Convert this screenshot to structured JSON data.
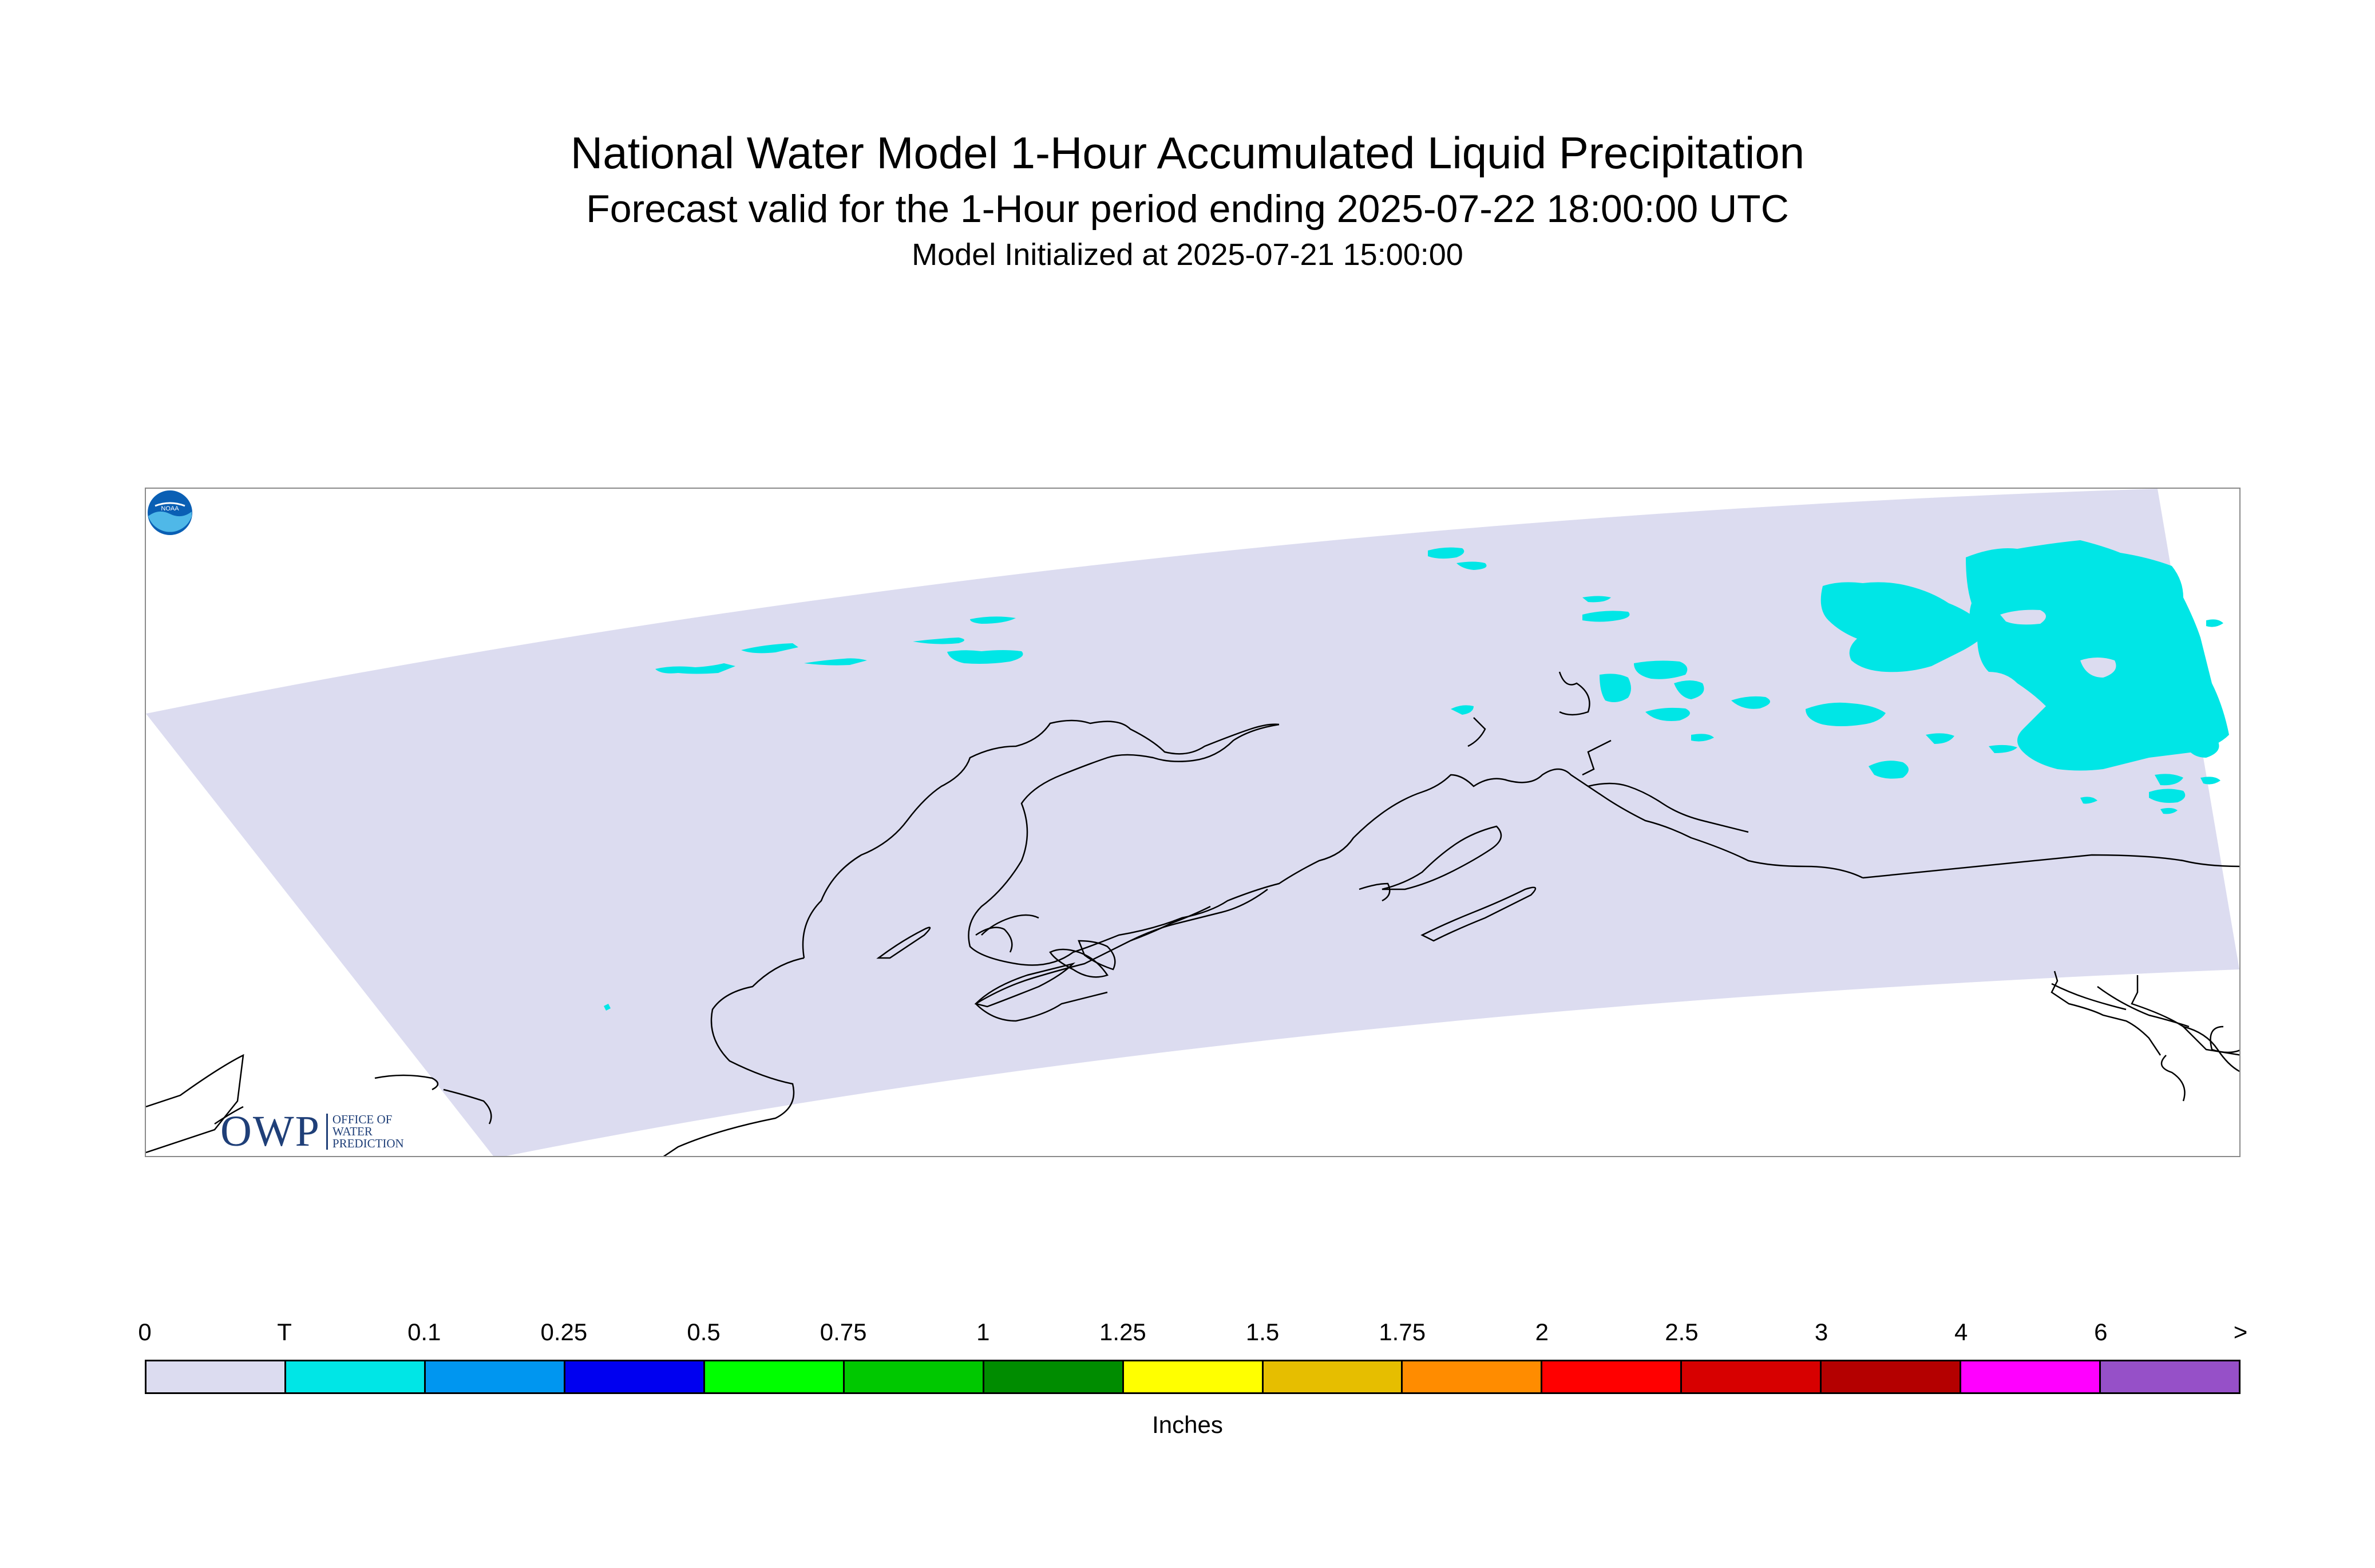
{
  "title": "National Water Model 1-Hour Accumulated Liquid Precipitation",
  "subtitle": "Forecast valid for the 1-Hour period ending 2025-07-22 18:00:00 UTC",
  "initialized": "Model Initialized at 2025-07-21 15:00:00",
  "map": {
    "domain_fill": "#dcdcf0",
    "precip_color": "#00e6e6",
    "coast_color": "#000000"
  },
  "logos": {
    "owp_main": "OWP",
    "owp_sub": [
      "OFFICE OF",
      "WATER",
      "PREDICTION"
    ],
    "noaa_text": "NOAA"
  },
  "legend": {
    "ticks": [
      "0",
      "T",
      "0.1",
      "0.25",
      "0.5",
      "0.75",
      "1",
      "1.25",
      "1.5",
      "1.75",
      "2",
      "2.5",
      "3",
      "4",
      "6",
      ">"
    ],
    "colors": [
      "#dcdcf0",
      "#00e6e6",
      "#0096f0",
      "#0000f0",
      "#00ff00",
      "#00c800",
      "#008c00",
      "#ffff00",
      "#e6be00",
      "#ff8c00",
      "#ff0000",
      "#d70000",
      "#b40000",
      "#ff00ff",
      "#9650c8"
    ],
    "units": "Inches"
  }
}
